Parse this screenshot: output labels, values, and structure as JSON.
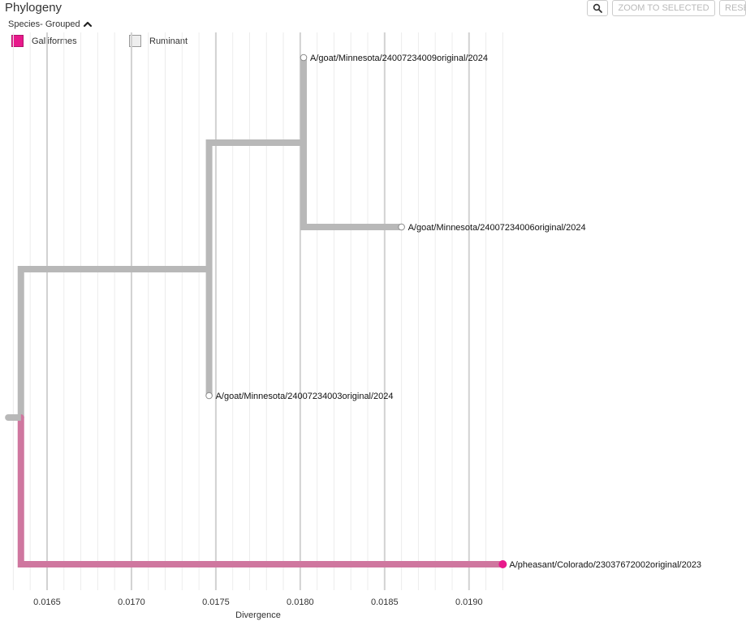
{
  "header": {
    "title": "Phylogeny",
    "grouping_label": "Species- Grouped"
  },
  "toolbar": {
    "zoom_icon": "magnifier-icon",
    "zoom_selected_label": "ZOOM TO SELECTED",
    "reset_label": "RESET"
  },
  "legend": {
    "items": [
      {
        "label": "Galliformes",
        "color": "#e8198b",
        "filled": true
      },
      {
        "label": "Ruminant",
        "color": "#eeeeee",
        "filled": false
      }
    ]
  },
  "chart_data": {
    "type": "phylogenetic-tree",
    "xlabel": "Divergence",
    "xlim": [
      0.01625,
      0.01928
    ],
    "x_ticks": [
      0.0165,
      0.017,
      0.0175,
      0.018,
      0.0185,
      0.019
    ],
    "x_tick_labels": [
      "0.0165",
      "0.0170",
      "0.0175",
      "0.0180",
      "0.0185",
      "0.0190"
    ],
    "grid": true,
    "branch_color": "#b8b8b8",
    "nodes": [
      {
        "id": "root",
        "parent": null,
        "div": 0.01627,
        "y": 515
      },
      {
        "id": "n1",
        "parent": "root",
        "div": 0.016345,
        "y": 515
      },
      {
        "id": "n2",
        "parent": "n1",
        "div": 0.01746,
        "y": 332
      },
      {
        "id": "n3",
        "parent": "n2",
        "div": 0.01802,
        "y": 176
      },
      {
        "id": "t1",
        "parent": "n3",
        "div": 0.01802,
        "y": 71,
        "label": "A/goat/Minnesota/24007234009original/2024",
        "color": "#ffffff",
        "group": "Ruminant"
      },
      {
        "id": "t2",
        "parent": "n3",
        "div": 0.0186,
        "y": 280,
        "label": "A/goat/Minnesota/24007234006original/2024",
        "color": "#ffffff",
        "group": "Ruminant"
      },
      {
        "id": "t3",
        "parent": "n2",
        "div": 0.01746,
        "y": 488,
        "label": "A/goat/Minnesota/24007234003original/2024",
        "color": "#ffffff",
        "group": "Ruminant"
      },
      {
        "id": "t4",
        "parent": "n1",
        "div": 0.0192,
        "y": 696,
        "label": "A/pheasant/Colorado/23037672002original/2023",
        "color": "#e8198b",
        "branch_color": "#cf779f",
        "group": "Galliformes"
      }
    ]
  }
}
